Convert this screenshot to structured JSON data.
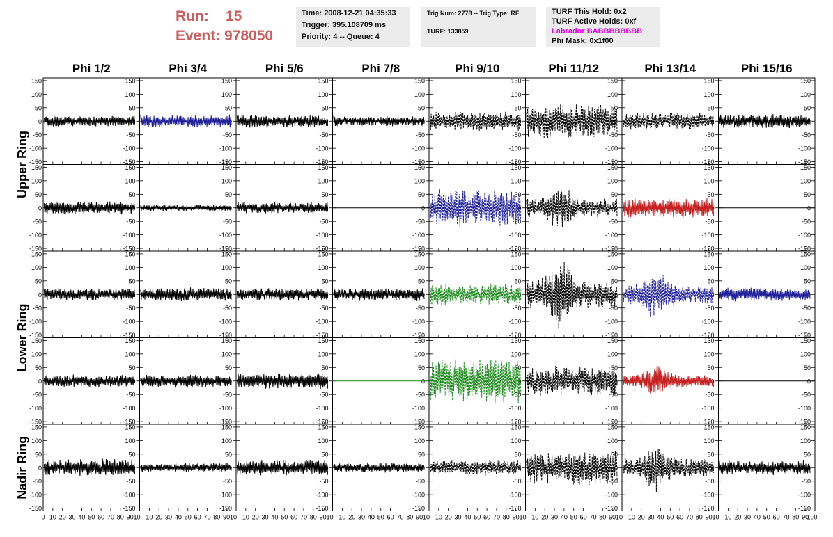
{
  "header": {
    "run_label": "Run:",
    "run_value": "15",
    "event_label": "Event:",
    "event_value": "978050",
    "time": "Time: 2008-12-21 04:35:33",
    "trigger": "Trigger: 395.108709 ms",
    "priority": "Priority: 4 -- Queue: 4",
    "trig_num": "Trig Num: 2778 -- Trig Type: RF",
    "turf": "TURF: 133859",
    "turf_this_hold": "TURF This Hold: 0x2",
    "turf_active_holds": "TURF Active Holds: 0xf",
    "labrador": "Labrador BABBBBBBBB",
    "phi_mask": "Phi Mask: 0x1f00"
  },
  "colors": {
    "run_text": "#cd5c5c",
    "labrador_text": "#e000e0",
    "panel_bg": "#ececec",
    "black": "#000000",
    "blue": "#20209a",
    "green": "#1a8a1a",
    "red": "#c62020"
  },
  "chart_data": {
    "type": "line",
    "columns": [
      "Phi 1/2",
      "Phi 3/4",
      "Phi 5/6",
      "Phi 7/8",
      "Phi 9/10",
      "Phi 11/12",
      "Phi 13/14",
      "Phi 15/16"
    ],
    "row_groups": [
      {
        "label": "Upper Ring",
        "rows": [
          0,
          1
        ]
      },
      {
        "label": "Lower Ring",
        "rows": [
          2,
          3
        ]
      },
      {
        "label": "Nadir Ring",
        "rows": [
          4
        ]
      }
    ],
    "xlim": [
      0,
      100
    ],
    "ylim": [
      -160,
      160
    ],
    "yticks": [
      -150,
      -100,
      -50,
      0,
      50,
      100,
      150
    ],
    "ytick_labels": [
      "-150",
      "-100",
      "-50",
      "0",
      "50",
      "100",
      "150"
    ],
    "xticks": [
      0,
      10,
      20,
      30,
      40,
      50,
      60,
      70,
      80,
      90
    ],
    "xtick_labels_first": [
      "0",
      "10",
      "20",
      "30",
      "40",
      "50",
      "60",
      "70",
      "80",
      "90"
    ],
    "xtick_labels": [
      "10",
      "20",
      "30",
      "40",
      "50",
      "60",
      "70",
      "80",
      "90"
    ],
    "xtick_edge_labels": [
      "10",
      "100"
    ],
    "cells": [
      [
        {
          "color": "black",
          "style": "solid",
          "amp": 18,
          "burst": 0
        },
        {
          "color": "blue",
          "style": "solid",
          "amp": 20,
          "burst": 0
        },
        {
          "color": "black",
          "style": "solid",
          "amp": 20,
          "burst": 0
        },
        {
          "color": "black",
          "style": "solid",
          "amp": 16,
          "burst": 0
        },
        {
          "color": "black",
          "style": "dashed",
          "amp": 30,
          "burst": 0
        },
        {
          "color": "black",
          "style": "dashed",
          "amp": 55,
          "burst": 0
        },
        {
          "color": "black",
          "style": "dashed",
          "amp": 28,
          "burst": 0
        },
        {
          "color": "black",
          "style": "solid",
          "amp": 22,
          "burst": 0
        }
      ],
      [
        {
          "color": "black",
          "style": "solid",
          "amp": 20,
          "burst": 0
        },
        {
          "color": "black",
          "style": "solid",
          "amp": 10,
          "burst": 0
        },
        {
          "color": "black",
          "style": "solid",
          "amp": 18,
          "burst": 0
        },
        {
          "color": "black",
          "style": "flat",
          "amp": 0,
          "burst": 0
        },
        {
          "color": "blue",
          "style": "dashed",
          "amp": 60,
          "burst": 0
        },
        {
          "color": "black",
          "style": "dashed",
          "amp": 55,
          "burst": 1
        },
        {
          "color": "red",
          "style": "solid",
          "amp": 30,
          "burst": 0
        },
        {
          "color": "black",
          "style": "flat",
          "amp": 0,
          "burst": 0
        }
      ],
      [
        {
          "color": "black",
          "style": "solid",
          "amp": 20,
          "burst": 0
        },
        {
          "color": "black",
          "style": "solid",
          "amp": 22,
          "burst": 0
        },
        {
          "color": "black",
          "style": "solid",
          "amp": 20,
          "burst": 0
        },
        {
          "color": "black",
          "style": "solid",
          "amp": 20,
          "burst": 0
        },
        {
          "color": "green",
          "style": "dashed",
          "amp": 35,
          "burst": 0
        },
        {
          "color": "black",
          "style": "dashed",
          "amp": 80,
          "burst": 1
        },
        {
          "color": "blue",
          "style": "dashed",
          "amp": 55,
          "burst": 1
        },
        {
          "color": "blue",
          "style": "solid",
          "amp": 22,
          "burst": 0
        }
      ],
      [
        {
          "color": "black",
          "style": "solid",
          "amp": 20,
          "burst": 0
        },
        {
          "color": "black",
          "style": "solid",
          "amp": 20,
          "burst": 0
        },
        {
          "color": "black",
          "style": "solid",
          "amp": 25,
          "burst": 0
        },
        {
          "color": "green",
          "style": "flat",
          "amp": 0,
          "burst": 0
        },
        {
          "color": "green",
          "style": "dashed",
          "amp": 70,
          "burst": 0
        },
        {
          "color": "black",
          "style": "dashed",
          "amp": 50,
          "burst": 0
        },
        {
          "color": "red",
          "style": "solid",
          "amp": 35,
          "burst": 1
        },
        {
          "color": "black",
          "style": "flat",
          "amp": 0,
          "burst": 0
        }
      ],
      [
        {
          "color": "black",
          "style": "solid",
          "amp": 28,
          "burst": 0
        },
        {
          "color": "black",
          "style": "solid",
          "amp": 15,
          "burst": 0
        },
        {
          "color": "black",
          "style": "solid",
          "amp": 25,
          "burst": 0
        },
        {
          "color": "black",
          "style": "solid",
          "amp": 15,
          "burst": 0
        },
        {
          "color": "black",
          "style": "dashed",
          "amp": 25,
          "burst": 0
        },
        {
          "color": "black",
          "style": "dashed",
          "amp": 55,
          "burst": 0
        },
        {
          "color": "black",
          "style": "dashed",
          "amp": 55,
          "burst": 1
        },
        {
          "color": "black",
          "style": "solid",
          "amp": 22,
          "burst": 0
        }
      ]
    ]
  }
}
